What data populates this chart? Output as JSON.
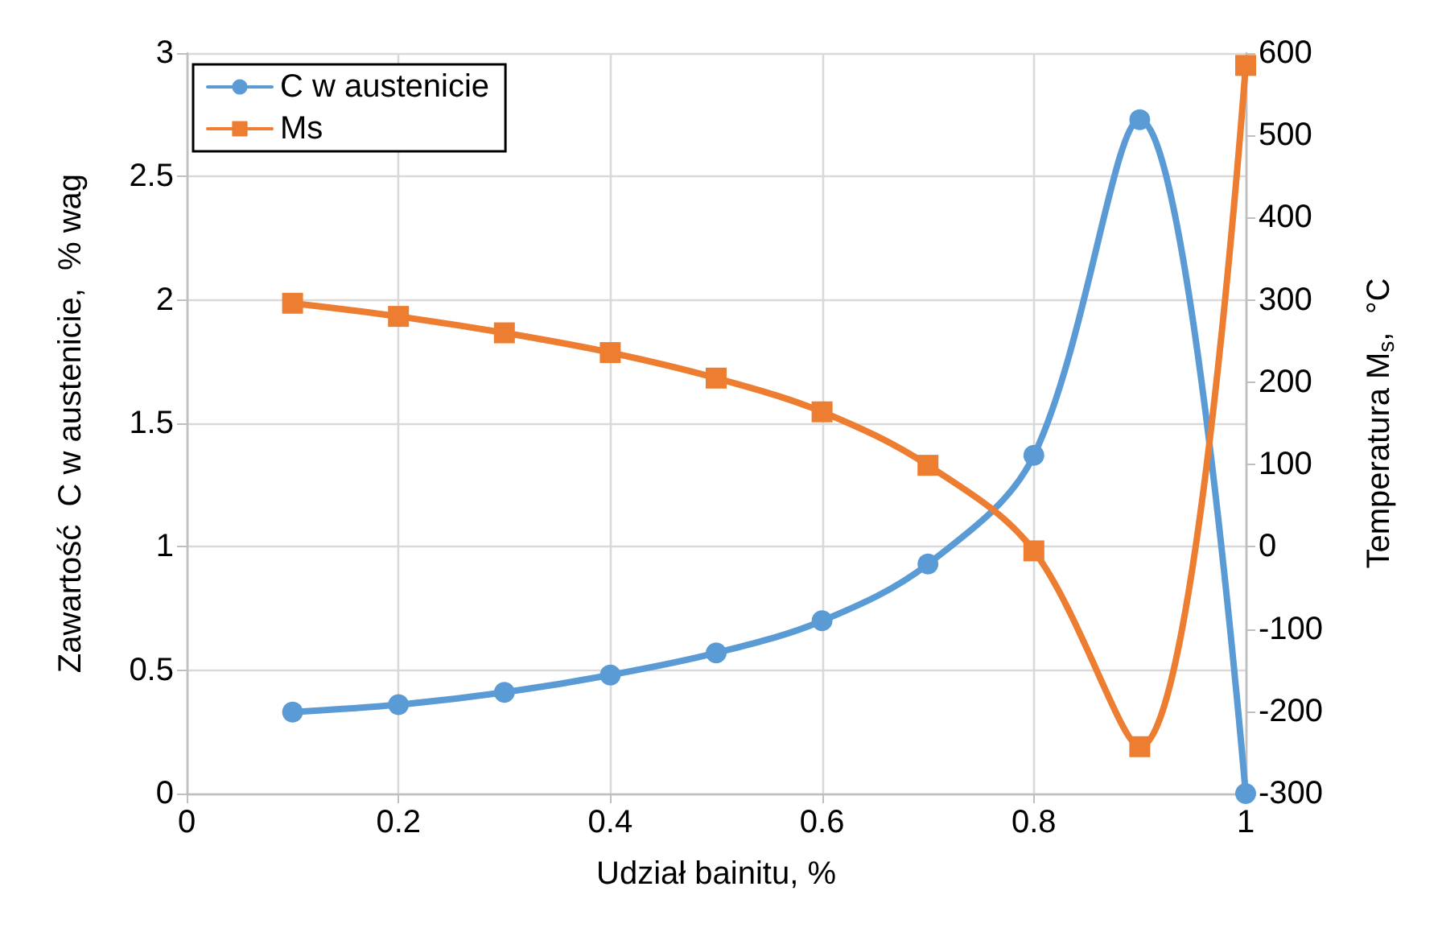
{
  "chart_data": {
    "type": "line",
    "xlabel": "Udział bainitu, %",
    "ylabel": "Zawartość  C w austenicie,  % wag",
    "y2label": "Temperatura M$_{s}$,  °C",
    "xlim": [
      0,
      1
    ],
    "xticks": [
      0,
      0.2,
      0.4,
      0.6,
      0.8,
      1
    ],
    "ylim": [
      0,
      3
    ],
    "yticks": [
      0,
      0.5,
      1,
      1.5,
      2,
      2.5,
      3
    ],
    "y2lim": [
      -300,
      600
    ],
    "y2ticks": [
      -300,
      -200,
      -100,
      0,
      100,
      200,
      300,
      400,
      500,
      600
    ],
    "x": [
      0.1,
      0.2,
      0.3,
      0.4,
      0.5,
      0.6,
      0.7,
      0.8,
      0.9,
      1
    ],
    "grid": true,
    "legend": "top left",
    "line_style": "solid",
    "series": [
      {
        "name": "C w austenicie",
        "color": "#5b9bd5",
        "marker": "circle",
        "values": [
          0.33,
          0.36,
          0.41,
          0.48,
          0.57,
          0.7,
          0.93,
          1.37,
          2.73,
          0
        ]
      },
      {
        "name": "Ms",
        "color": "#ed7d31",
        "marker": "square",
        "axis": "y2",
        "values": [
          296,
          280,
          260,
          236,
          205,
          164,
          99,
          -5,
          -243,
          585
        ]
      }
    ]
  }
}
